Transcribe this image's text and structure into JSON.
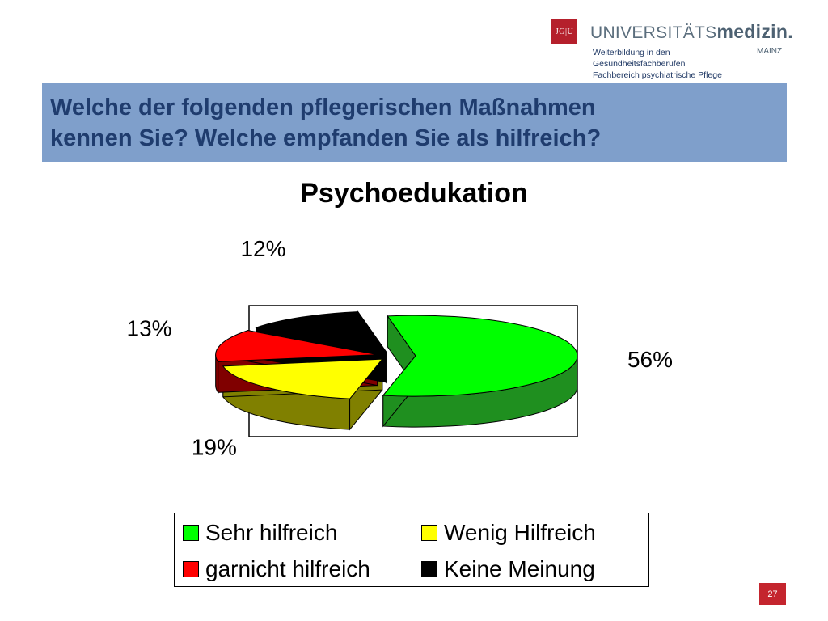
{
  "header": {
    "logo_mark": "JG|U",
    "logo_word_light": "UNIVERSITÄTS",
    "logo_word_bold": "medizin.",
    "logo_city": "MAINZ",
    "subtitle_lines": [
      "Weiterbildung in den",
      "Gesundheitsfachberufen",
      "Fachbereich psychiatrische Pflege"
    ]
  },
  "banner": {
    "line1": "Welche der folgenden pflegerischen Maßnahmen",
    "line2": "kennen Sie? Welche empfanden Sie als hilfreich?"
  },
  "chart_data": {
    "type": "pie",
    "title": "Psychoedukation",
    "slices": [
      {
        "label": "Sehr hilfreich",
        "value": 56,
        "display": "56%",
        "color": "#00ff00",
        "side_color": "#1f8f1f"
      },
      {
        "label": "Wenig Hilfreich",
        "value": 19,
        "display": "19%",
        "color": "#ffff00",
        "side_color": "#808000"
      },
      {
        "label": "garnicht hilfreich",
        "value": 13,
        "display": "13%",
        "color": "#ff0000",
        "side_color": "#800000"
      },
      {
        "label": "Keine Meinung",
        "value": 12,
        "display": "12%",
        "color": "#000000",
        "side_color": "#000000"
      }
    ],
    "exploded": true,
    "three_d": true,
    "legend_placement": "bottom"
  },
  "footer": {
    "page_number": "27"
  }
}
